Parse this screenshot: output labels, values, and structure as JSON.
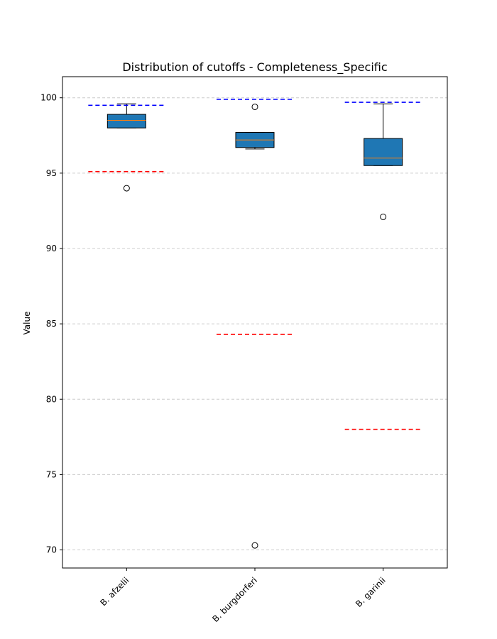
{
  "chart_data": {
    "type": "box",
    "title": "Distribution of cutoffs - Completeness_Specific",
    "xlabel": "",
    "ylabel": "Value",
    "ylim": [
      68.8,
      101.4
    ],
    "yticks": [
      70,
      75,
      80,
      85,
      90,
      95,
      100
    ],
    "grid": "y-dashed",
    "categories": [
      "B. afzelii",
      "B. burgdorferi",
      "B. garinii"
    ],
    "boxes": [
      {
        "category": "B. afzelii",
        "whislo": 98.0,
        "q1": 98.0,
        "med": 98.5,
        "q3": 98.9,
        "whishi": 99.6,
        "fliers": [
          94.0
        ]
      },
      {
        "category": "B. burgdorferi",
        "whislo": 96.6,
        "q1": 96.7,
        "med": 97.2,
        "q3": 97.7,
        "whishi": 97.7,
        "fliers": [
          99.4,
          70.3
        ]
      },
      {
        "category": "B. garinii",
        "whislo": 95.5,
        "q1": 95.5,
        "med": 96.0,
        "q3": 97.3,
        "whishi": 99.6,
        "fliers": [
          92.1
        ]
      }
    ],
    "reference_lines": [
      {
        "category": "B. afzelii",
        "color": "#0000ff",
        "value": 99.5
      },
      {
        "category": "B. afzelii",
        "color": "#ff0000",
        "value": 95.1
      },
      {
        "category": "B. burgdorferi",
        "color": "#0000ff",
        "value": 99.9
      },
      {
        "category": "B. burgdorferi",
        "color": "#ff0000",
        "value": 84.3
      },
      {
        "category": "B. garinii",
        "color": "#0000ff",
        "value": 99.7
      },
      {
        "category": "B. garinii",
        "color": "#ff0000",
        "value": 78.0
      }
    ],
    "colors": {
      "box_fill": "#1f77b4",
      "median": "#ff7f0e",
      "grid": "#cccccc"
    }
  }
}
